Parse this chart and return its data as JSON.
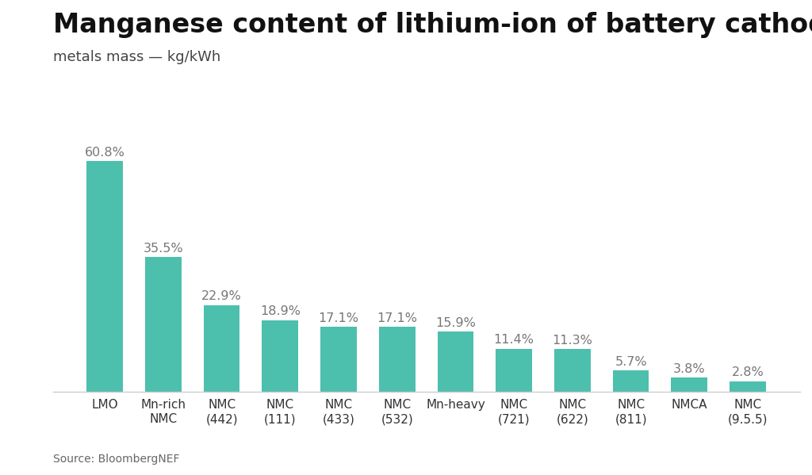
{
  "title": "Manganese content of lithium-ion of battery cathodes",
  "subtitle": "metals mass — kg/kWh",
  "source": "Source: BloombergNEF",
  "categories": [
    "LMO",
    "Mn-rich\nNMC",
    "NMC\n(442)",
    "NMC\n(111)",
    "NMC\n(433)",
    "NMC\n(532)",
    "Mn-heavy",
    "NMC\n(721)",
    "NMC\n(622)",
    "NMC\n(811)",
    "NMCA",
    "NMC\n(9.5.5)"
  ],
  "values": [
    60.8,
    35.5,
    22.9,
    18.9,
    17.1,
    17.1,
    15.9,
    11.4,
    11.3,
    5.7,
    3.8,
    2.8
  ],
  "labels": [
    "60.8%",
    "35.5%",
    "22.9%",
    "18.9%",
    "17.1%",
    "17.1%",
    "15.9%",
    "11.4%",
    "11.3%",
    "5.7%",
    "3.8%",
    "2.8%"
  ],
  "bar_color": "#4DBFAD",
  "background_color": "#ffffff",
  "title_fontsize": 24,
  "subtitle_fontsize": 13,
  "label_fontsize": 11.5,
  "tick_fontsize": 11,
  "source_fontsize": 10,
  "ylim": [
    0,
    72
  ],
  "label_color": "#777777",
  "tick_color": "#333333",
  "title_color": "#111111",
  "subtitle_color": "#444444",
  "source_color": "#666666",
  "spine_color": "#cccccc"
}
